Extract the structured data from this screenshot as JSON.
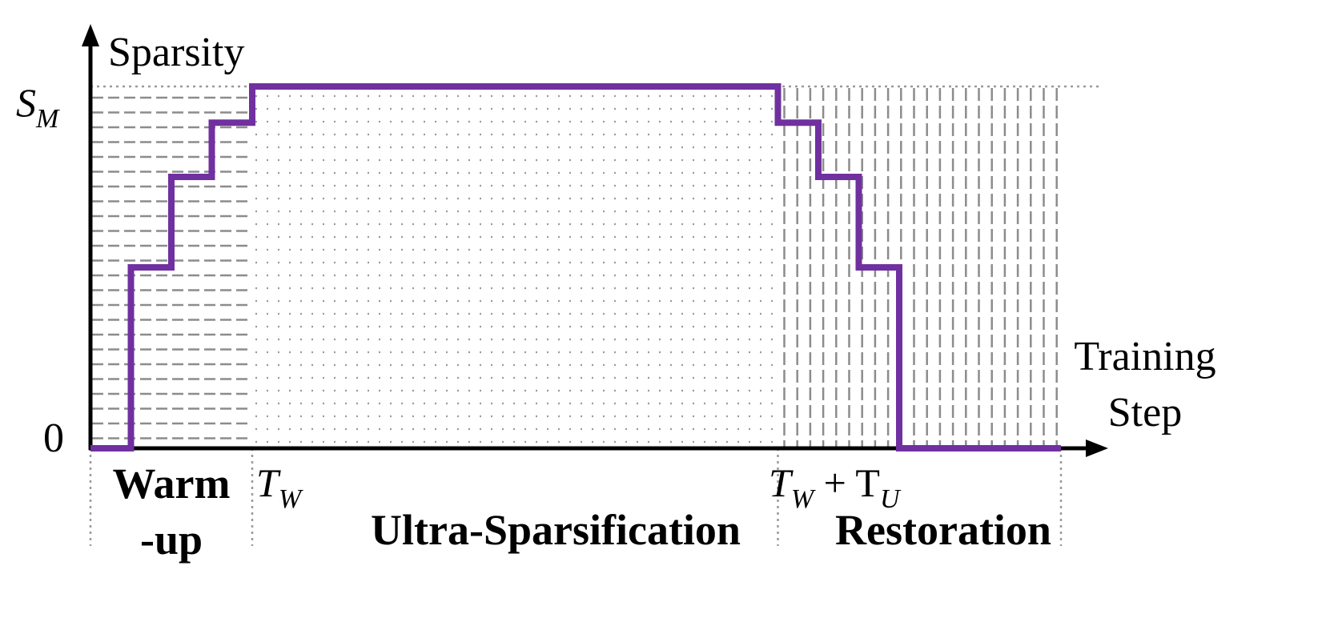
{
  "chart_data": {
    "type": "line",
    "title": "",
    "ylabel": "Sparsity",
    "xlabel_lines": [
      "Training",
      "Step"
    ],
    "ytick_labels": {
      "zero": "0",
      "top_main": "S",
      "top_sub": "M"
    },
    "x_markers": [
      {
        "main": "T",
        "sub": "W",
        "rest": "",
        "x": 4
      },
      {
        "main": "T",
        "sub": "W",
        "rest": " + T",
        "sub2": "U",
        "x": 17
      }
    ],
    "phases": [
      {
        "label_lines": [
          "Warm",
          "-up"
        ],
        "start": 0,
        "end": 4,
        "pattern": "horizontal-dashed"
      },
      {
        "label_lines": [
          "Ultra-Sparsification"
        ],
        "start": 4,
        "end": 17,
        "pattern": "dotted"
      },
      {
        "label_lines": [
          "Restoration"
        ],
        "start": 17,
        "end": 24,
        "pattern": "vertical-dashed"
      }
    ],
    "series": [
      {
        "color": "#7030a0",
        "step_points": [
          [
            0,
            0
          ],
          [
            1,
            0
          ],
          [
            1,
            0.5
          ],
          [
            2,
            0.5
          ],
          [
            2,
            0.75
          ],
          [
            3,
            0.75
          ],
          [
            3,
            0.9
          ],
          [
            4,
            0.9
          ],
          [
            4,
            1.0
          ],
          [
            17,
            1.0
          ],
          [
            17,
            0.9
          ],
          [
            18,
            0.9
          ],
          [
            18,
            0.75
          ],
          [
            19,
            0.75
          ],
          [
            19,
            0.5
          ],
          [
            20,
            0.5
          ],
          [
            20,
            0
          ],
          [
            24,
            0
          ]
        ]
      }
    ],
    "xlim": [
      0,
      24
    ],
    "ylim": [
      0,
      1.0
    ],
    "grid": false
  }
}
